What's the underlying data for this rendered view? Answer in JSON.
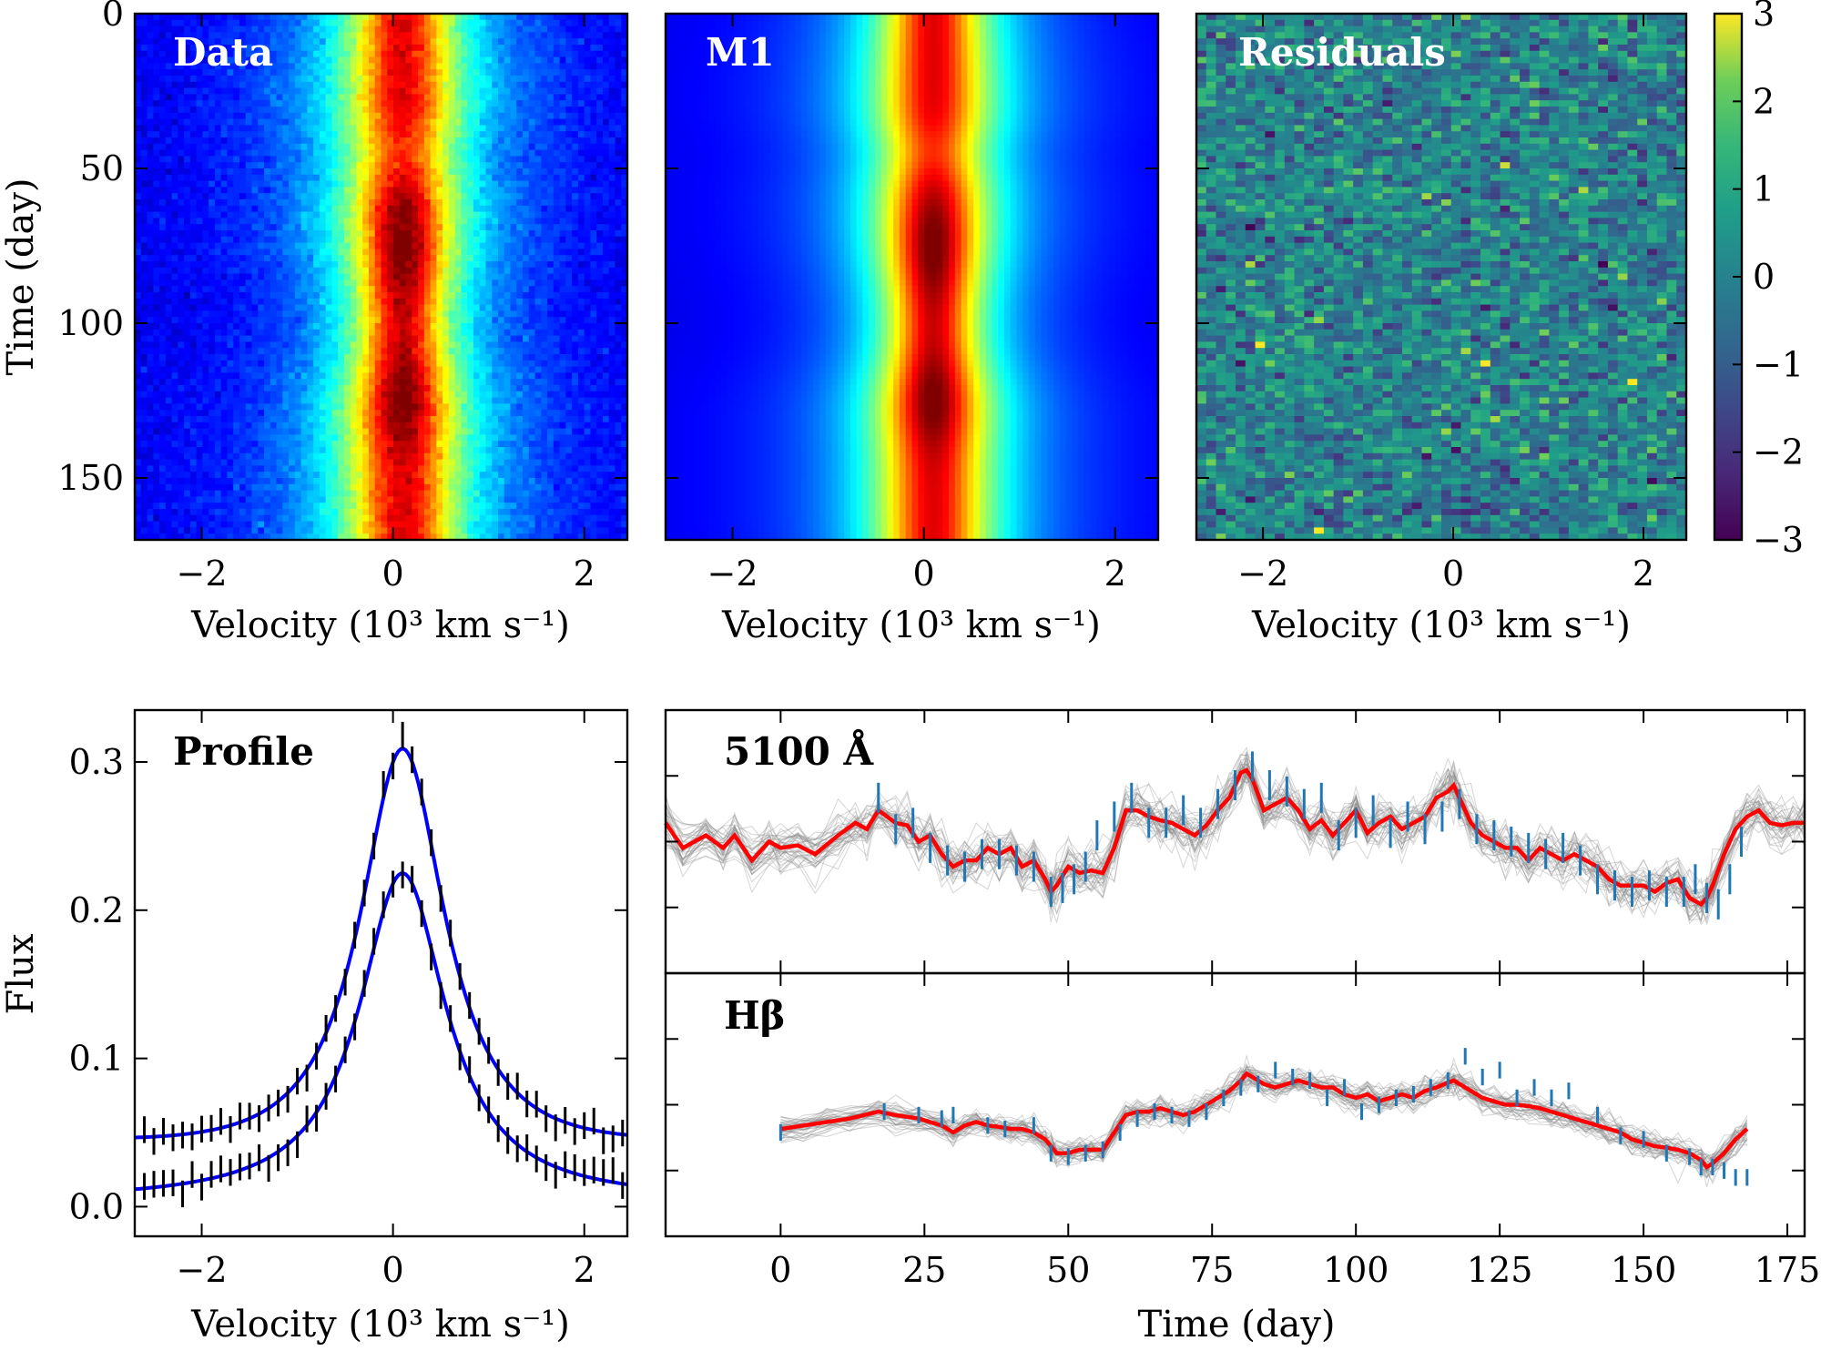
{
  "figure": {
    "panels": {
      "data": {
        "label": "Data"
      },
      "model": {
        "label": "M1"
      },
      "residuals": {
        "label": "Residuals"
      },
      "profile": {
        "label": "Profile"
      },
      "continuum": {
        "label": "5100 Å"
      },
      "hbeta": {
        "label": "Hβ"
      }
    },
    "labels": {
      "velocity_axis": "Velocity (10³ km s⁻¹)",
      "time_axis": "Time (day)",
      "flux_axis": "Flux"
    },
    "colors": {
      "model_line": "#ff0000",
      "samples": "#888888",
      "data_points": "#1f77b4",
      "profile_fit": "#0000ff",
      "profile_errbars": "#000000"
    }
  },
  "chart_data": [
    {
      "type": "heatmap",
      "panel": "data",
      "title": "Data",
      "xlabel": "Velocity (10³ km s⁻¹)",
      "ylabel": "Time (day)",
      "xlim": [
        -2.7,
        2.45
      ],
      "ylim": [
        170,
        0
      ],
      "xticks": [
        -2,
        0,
        2
      ],
      "yticks": [
        0,
        50,
        100,
        150
      ],
      "colormap": "jet",
      "rows": 85,
      "cols": 80,
      "note_features": "emission line centered near 0.1, peaks near day 75 and day 125"
    },
    {
      "type": "heatmap",
      "panel": "model",
      "title": "M1",
      "xlabel": "Velocity (10³ km s⁻¹)",
      "xlim": [
        -2.7,
        2.45
      ],
      "ylim": [
        170,
        0
      ],
      "xticks": [
        -2,
        0,
        2
      ],
      "colormap": "jet",
      "rows": 85,
      "cols": 80
    },
    {
      "type": "heatmap",
      "panel": "residuals",
      "title": "Residuals",
      "xlabel": "Velocity (10³ km s⁻¹)",
      "xlim": [
        -2.7,
        2.45
      ],
      "ylim": [
        170,
        0
      ],
      "xticks": [
        -2,
        0,
        2
      ],
      "colormap": "viridis",
      "colorbar": {
        "range": [
          -3,
          3
        ],
        "ticks": [
          3,
          2,
          1,
          0,
          -1,
          -2,
          -3
        ]
      },
      "rows": 85,
      "cols": 50
    },
    {
      "type": "line",
      "panel": "profile",
      "title": "Profile",
      "xlabel": "Velocity (10³ km s⁻¹)",
      "ylabel": "Flux",
      "xlim": [
        -2.7,
        2.45
      ],
      "ylim": [
        -0.02,
        0.335
      ],
      "xticks": [
        -2,
        0,
        2
      ],
      "yticks": [
        0.0,
        0.1,
        0.2,
        0.3
      ],
      "series": [
        {
          "peak": 0.309,
          "wing": 0.07,
          "center": 0.1,
          "width": 0.55,
          "err": 0.009
        },
        {
          "peak": 0.225,
          "wing": 0.01,
          "center": 0.1,
          "width": 0.55,
          "err": 0.009
        }
      ]
    },
    {
      "type": "line",
      "panel": "continuum",
      "title": "5100 Å",
      "xlim": [
        -20,
        178
      ],
      "ylim": [
        0.15,
        0.36
      ],
      "model_x": [
        -20,
        -17,
        -13,
        -10,
        -8,
        -5,
        -2,
        0,
        3,
        6,
        10,
        13,
        15,
        17,
        20,
        22,
        24,
        26,
        28,
        30,
        32,
        34,
        36,
        38,
        40,
        42,
        44,
        46,
        47,
        48,
        50,
        52,
        54,
        56,
        58,
        60,
        62,
        64,
        66,
        68,
        70,
        72,
        74,
        76,
        78,
        80,
        81,
        82,
        84,
        86,
        88,
        90,
        92,
        94,
        96,
        98,
        100,
        102,
        104,
        106,
        108,
        110,
        112,
        114,
        116,
        117,
        118,
        120,
        122,
        124,
        126,
        128,
        130,
        132,
        134,
        136,
        138,
        140,
        142,
        144,
        146,
        148,
        150,
        152,
        154,
        156,
        158,
        160,
        161,
        162,
        164,
        166,
        168,
        170,
        172,
        174,
        176,
        178
      ],
      "model_y": [
        0.27,
        0.25,
        0.26,
        0.25,
        0.26,
        0.24,
        0.255,
        0.25,
        0.252,
        0.245,
        0.26,
        0.27,
        0.265,
        0.28,
        0.27,
        0.268,
        0.255,
        0.26,
        0.245,
        0.235,
        0.24,
        0.24,
        0.25,
        0.245,
        0.25,
        0.235,
        0.24,
        0.225,
        0.215,
        0.22,
        0.235,
        0.23,
        0.232,
        0.23,
        0.25,
        0.28,
        0.28,
        0.275,
        0.272,
        0.27,
        0.265,
        0.26,
        0.268,
        0.28,
        0.29,
        0.31,
        0.312,
        0.305,
        0.28,
        0.285,
        0.29,
        0.28,
        0.265,
        0.272,
        0.26,
        0.27,
        0.28,
        0.262,
        0.27,
        0.275,
        0.265,
        0.27,
        0.275,
        0.29,
        0.295,
        0.3,
        0.29,
        0.27,
        0.26,
        0.255,
        0.25,
        0.25,
        0.24,
        0.25,
        0.245,
        0.24,
        0.245,
        0.24,
        0.235,
        0.225,
        0.22,
        0.22,
        0.22,
        0.215,
        0.222,
        0.225,
        0.21,
        0.205,
        0.21,
        0.22,
        0.245,
        0.265,
        0.275,
        0.28,
        0.27,
        0.268,
        0.27,
        0.27
      ],
      "data_x": [
        17,
        20,
        23,
        26,
        29,
        32,
        35,
        38,
        41,
        44,
        47,
        49,
        51,
        53,
        55,
        58,
        61,
        64,
        67,
        70,
        73,
        76,
        79,
        82,
        85,
        88,
        91,
        94,
        97,
        100,
        103,
        106,
        109,
        112,
        115,
        118,
        121,
        124,
        127,
        130,
        133,
        136,
        139,
        142,
        145,
        148,
        151,
        154,
        157,
        159,
        161,
        163,
        165,
        167
      ],
      "data_y": [
        0.29,
        0.265,
        0.27,
        0.25,
        0.24,
        0.235,
        0.245,
        0.245,
        0.24,
        0.235,
        0.215,
        0.218,
        0.225,
        0.235,
        0.26,
        0.275,
        0.29,
        0.27,
        0.27,
        0.28,
        0.27,
        0.285,
        0.3,
        0.315,
        0.3,
        0.295,
        0.285,
        0.29,
        0.26,
        0.27,
        0.28,
        0.262,
        0.275,
        0.265,
        0.275,
        0.285,
        0.265,
        0.26,
        0.255,
        0.25,
        0.245,
        0.25,
        0.24,
        0.225,
        0.22,
        0.215,
        0.22,
        0.215,
        0.215,
        0.225,
        0.21,
        0.205,
        0.225,
        0.255
      ],
      "err": 0.012
    },
    {
      "type": "line",
      "panel": "hbeta",
      "title": "Hβ",
      "xlabel": "Time (day)",
      "xlim": [
        -20,
        178
      ],
      "ylim": [
        0.0,
        0.38
      ],
      "xticks": [
        0,
        25,
        50,
        75,
        100,
        125,
        150,
        175
      ],
      "model_x": [
        0,
        4,
        8,
        12,
        17,
        20,
        24,
        28,
        30,
        32,
        34,
        36,
        38,
        40,
        42,
        44,
        46,
        47,
        48,
        50,
        52,
        54,
        56,
        58,
        60,
        62,
        64,
        66,
        68,
        70,
        72,
        74,
        76,
        78,
        80,
        81,
        82,
        84,
        86,
        88,
        90,
        92,
        94,
        96,
        98,
        100,
        102,
        104,
        106,
        108,
        110,
        112,
        114,
        116,
        117,
        118,
        120,
        122,
        124,
        126,
        128,
        130,
        132,
        134,
        136,
        138,
        140,
        142,
        144,
        146,
        148,
        150,
        152,
        154,
        156,
        158,
        160,
        161,
        162,
        164,
        166,
        168
      ],
      "model_y": [
        0.155,
        0.16,
        0.165,
        0.17,
        0.18,
        0.175,
        0.17,
        0.16,
        0.15,
        0.16,
        0.165,
        0.16,
        0.158,
        0.155,
        0.155,
        0.15,
        0.14,
        0.13,
        0.12,
        0.12,
        0.125,
        0.125,
        0.125,
        0.15,
        0.175,
        0.18,
        0.18,
        0.185,
        0.18,
        0.175,
        0.18,
        0.19,
        0.2,
        0.21,
        0.225,
        0.235,
        0.23,
        0.22,
        0.215,
        0.22,
        0.225,
        0.22,
        0.215,
        0.215,
        0.205,
        0.2,
        0.205,
        0.195,
        0.2,
        0.205,
        0.2,
        0.21,
        0.215,
        0.222,
        0.225,
        0.22,
        0.21,
        0.2,
        0.195,
        0.19,
        0.19,
        0.188,
        0.185,
        0.18,
        0.175,
        0.17,
        0.165,
        0.16,
        0.155,
        0.15,
        0.14,
        0.135,
        0.13,
        0.128,
        0.125,
        0.12,
        0.11,
        0.1,
        0.105,
        0.12,
        0.14,
        0.155
      ],
      "data_x": [
        0,
        18,
        24,
        28,
        30,
        36,
        39,
        44,
        47,
        50,
        53,
        56,
        59,
        62,
        65,
        68,
        71,
        74,
        77,
        80,
        83,
        86,
        89,
        92,
        95,
        98,
        101,
        104,
        107,
        110,
        113,
        116,
        119,
        122,
        125,
        128,
        131,
        134,
        137,
        142,
        146,
        150,
        154,
        158,
        160,
        162,
        164,
        166,
        168
      ],
      "data_y": [
        0.15,
        0.18,
        0.175,
        0.17,
        0.175,
        0.16,
        0.155,
        0.16,
        0.12,
        0.115,
        0.12,
        0.125,
        0.15,
        0.17,
        0.18,
        0.175,
        0.17,
        0.18,
        0.2,
        0.215,
        0.22,
        0.24,
        0.23,
        0.225,
        0.2,
        0.215,
        0.18,
        0.19,
        0.2,
        0.205,
        0.215,
        0.225,
        0.26,
        0.23,
        0.24,
        0.2,
        0.215,
        0.2,
        0.21,
        0.175,
        0.145,
        0.14,
        0.12,
        0.115,
        0.1,
        0.1,
        0.095,
        0.085,
        0.085
      ],
      "err": 0.012
    }
  ]
}
